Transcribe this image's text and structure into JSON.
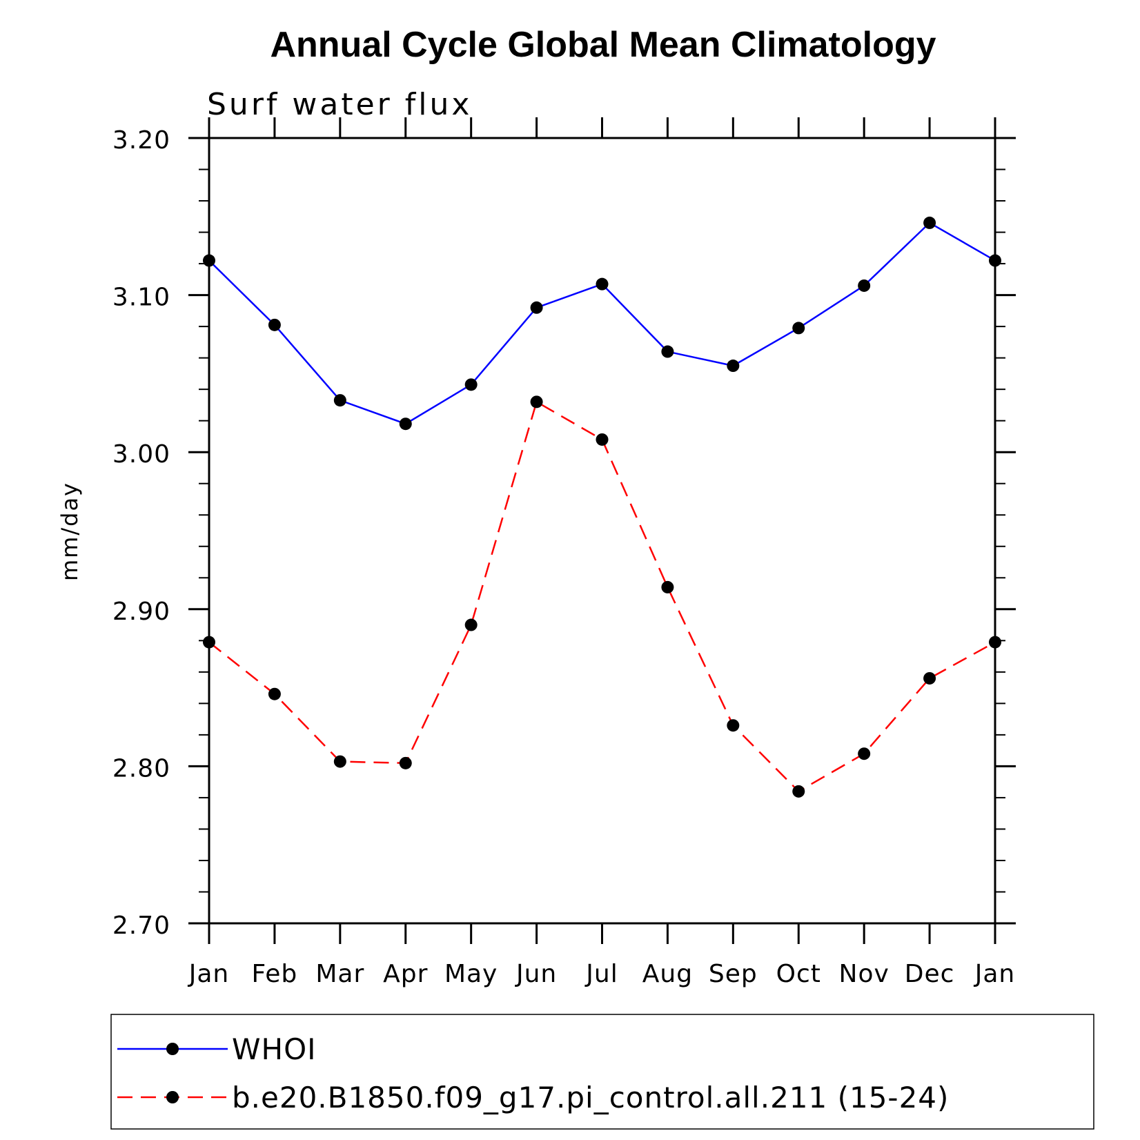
{
  "chart_data": {
    "type": "line",
    "title": "Annual Cycle Global Mean Climatology",
    "subtitle": "Surf water flux",
    "ylabel": "mm/day",
    "xlabel": "",
    "ylim": [
      2.7,
      3.2
    ],
    "yticks": [
      "2.70",
      "2.80",
      "2.90",
      "3.00",
      "3.10",
      "3.20"
    ],
    "ytick_values": [
      2.7,
      2.8,
      2.9,
      3.0,
      3.1,
      3.2
    ],
    "y_minor_step": 0.02,
    "categories": [
      "Jan",
      "Feb",
      "Mar",
      "Apr",
      "May",
      "Jun",
      "Jul",
      "Aug",
      "Sep",
      "Oct",
      "Nov",
      "Dec",
      "Jan"
    ],
    "series": [
      {
        "name": "WHOI",
        "color": "#0000ff",
        "dash": "solid",
        "marker": "filled-circle",
        "values": [
          3.122,
          3.081,
          3.033,
          3.018,
          3.043,
          3.092,
          3.107,
          3.064,
          3.055,
          3.079,
          3.106,
          3.146,
          3.122
        ]
      },
      {
        "name": "b.e20.B1850.f09_g17.pi_control.all.211 (15-24)",
        "color": "#ff0000",
        "dash": "dashed",
        "marker": "filled-circle",
        "values": [
          2.879,
          2.846,
          2.803,
          2.802,
          2.89,
          3.032,
          3.008,
          2.914,
          2.826,
          2.784,
          2.808,
          2.856,
          2.879
        ]
      }
    ],
    "legend_position": "bottom",
    "grid": false
  }
}
